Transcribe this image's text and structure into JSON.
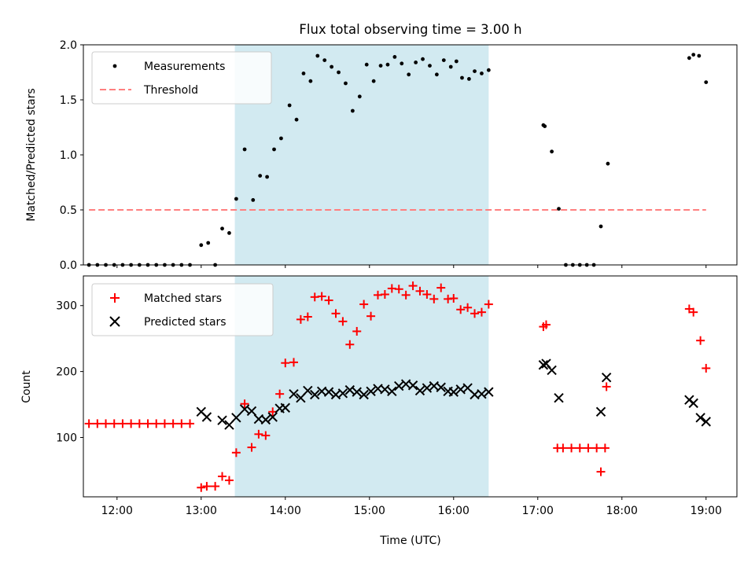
{
  "title": "Flux total observing time = 3.00 h",
  "xlabel": "Time (UTC)",
  "x_ticks": [
    "12:00",
    "13:00",
    "14:00",
    "15:00",
    "16:00",
    "17:00",
    "18:00",
    "19:00"
  ],
  "colors": {
    "measurements": "#000000",
    "threshold": "#ff7f7f",
    "matched": "#ff0000",
    "predicted": "#000000",
    "shading": "#add8e6"
  },
  "chart_data": [
    {
      "type": "scatter",
      "panel": "top",
      "ylabel": "Matched/Predicted stars",
      "xlim": [
        "11:36",
        "19:22"
      ],
      "ylim": [
        0,
        2.0
      ],
      "y_ticks": [
        "0.0",
        "0.5",
        "1.0",
        "1.5",
        "2.0"
      ],
      "legend_position": "upper-left",
      "shaded_interval": [
        "13:24",
        "16:25"
      ],
      "threshold": {
        "name": "Threshold",
        "value": 0.5,
        "x_range": [
          "11:40",
          "19:00"
        ]
      },
      "series": [
        {
          "name": "Measurements",
          "points": [
            [
              "11:40",
              0.0
            ],
            [
              "11:46",
              0.0
            ],
            [
              "11:52",
              0.0
            ],
            [
              "11:58",
              0.0
            ],
            [
              "12:04",
              0.0
            ],
            [
              "12:10",
              0.0
            ],
            [
              "12:16",
              0.0
            ],
            [
              "12:22",
              0.0
            ],
            [
              "12:28",
              0.0
            ],
            [
              "12:34",
              0.0
            ],
            [
              "12:40",
              0.0
            ],
            [
              "12:46",
              0.0
            ],
            [
              "12:52",
              0.0
            ],
            [
              "13:00",
              0.18
            ],
            [
              "13:05",
              0.2
            ],
            [
              "13:10",
              0.0
            ],
            [
              "13:15",
              0.33
            ],
            [
              "13:20",
              0.29
            ],
            [
              "13:25",
              0.6
            ],
            [
              "13:31",
              1.05
            ],
            [
              "13:37",
              0.59
            ],
            [
              "13:42",
              0.81
            ],
            [
              "13:47",
              0.8
            ],
            [
              "13:52",
              1.05
            ],
            [
              "13:57",
              1.15
            ],
            [
              "14:03",
              1.45
            ],
            [
              "14:08",
              1.32
            ],
            [
              "14:13",
              1.74
            ],
            [
              "14:18",
              1.67
            ],
            [
              "14:23",
              1.9
            ],
            [
              "14:28",
              1.86
            ],
            [
              "14:33",
              1.8
            ],
            [
              "14:38",
              1.75
            ],
            [
              "14:43",
              1.65
            ],
            [
              "14:48",
              1.4
            ],
            [
              "14:53",
              1.53
            ],
            [
              "14:58",
              1.82
            ],
            [
              "15:03",
              1.67
            ],
            [
              "15:08",
              1.81
            ],
            [
              "15:13",
              1.82
            ],
            [
              "15:18",
              1.89
            ],
            [
              "15:23",
              1.83
            ],
            [
              "15:28",
              1.73
            ],
            [
              "15:33",
              1.84
            ],
            [
              "15:38",
              1.87
            ],
            [
              "15:43",
              1.81
            ],
            [
              "15:48",
              1.73
            ],
            [
              "15:53",
              1.86
            ],
            [
              "15:58",
              1.8
            ],
            [
              "16:02",
              1.85
            ],
            [
              "16:06",
              1.7
            ],
            [
              "16:11",
              1.69
            ],
            [
              "16:15",
              1.76
            ],
            [
              "16:20",
              1.74
            ],
            [
              "16:25",
              1.77
            ],
            [
              "17:04",
              1.27
            ],
            [
              "17:05",
              1.26
            ],
            [
              "17:10",
              1.03
            ],
            [
              "17:15",
              0.51
            ],
            [
              "17:20",
              0.0
            ],
            [
              "17:25",
              0.0
            ],
            [
              "17:30",
              0.0
            ],
            [
              "17:35",
              0.0
            ],
            [
              "17:40",
              0.0
            ],
            [
              "17:45",
              0.35
            ],
            [
              "17:50",
              0.92
            ],
            [
              "18:48",
              1.88
            ],
            [
              "18:51",
              1.91
            ],
            [
              "18:55",
              1.9
            ],
            [
              "19:00",
              1.66
            ]
          ]
        }
      ]
    },
    {
      "type": "scatter",
      "panel": "bottom",
      "ylabel": "Count",
      "xlim": [
        "11:36",
        "19:22"
      ],
      "ylim": [
        10,
        345
      ],
      "y_ticks": [
        "100",
        "200",
        "300"
      ],
      "legend_position": "upper-left",
      "shaded_interval": [
        "13:24",
        "16:25"
      ],
      "series": [
        {
          "name": "Matched stars",
          "marker": "plus",
          "points": [
            [
              "11:40",
              121
            ],
            [
              "11:46",
              121
            ],
            [
              "11:52",
              121
            ],
            [
              "11:58",
              121
            ],
            [
              "12:04",
              121
            ],
            [
              "12:10",
              121
            ],
            [
              "12:16",
              121
            ],
            [
              "12:22",
              121
            ],
            [
              "12:28",
              121
            ],
            [
              "12:34",
              121
            ],
            [
              "12:40",
              121
            ],
            [
              "12:46",
              121
            ],
            [
              "12:52",
              121
            ],
            [
              "13:00",
              24
            ],
            [
              "13:04",
              26
            ],
            [
              "13:10",
              26
            ],
            [
              "13:15",
              41
            ],
            [
              "13:20",
              35
            ],
            [
              "13:25",
              77
            ],
            [
              "13:31",
              151
            ],
            [
              "13:36",
              85
            ],
            [
              "13:41",
              105
            ],
            [
              "13:46",
              103
            ],
            [
              "13:51",
              139
            ],
            [
              "13:56",
              166
            ],
            [
              "14:00",
              213
            ],
            [
              "14:06",
              214
            ],
            [
              "14:11",
              279
            ],
            [
              "14:16",
              283
            ],
            [
              "14:21",
              313
            ],
            [
              "14:26",
              314
            ],
            [
              "14:31",
              308
            ],
            [
              "14:36",
              288
            ],
            [
              "14:41",
              276
            ],
            [
              "14:46",
              241
            ],
            [
              "14:51",
              261
            ],
            [
              "14:56",
              302
            ],
            [
              "15:01",
              284
            ],
            [
              "15:06",
              316
            ],
            [
              "15:11",
              317
            ],
            [
              "15:16",
              326
            ],
            [
              "15:21",
              325
            ],
            [
              "15:26",
              316
            ],
            [
              "15:31",
              330
            ],
            [
              "15:36",
              322
            ],
            [
              "15:41",
              317
            ],
            [
              "15:46",
              310
            ],
            [
              "15:51",
              327
            ],
            [
              "15:56",
              310
            ],
            [
              "16:00",
              311
            ],
            [
              "16:05",
              294
            ],
            [
              "16:10",
              297
            ],
            [
              "16:15",
              288
            ],
            [
              "16:20",
              290
            ],
            [
              "16:25",
              302
            ],
            [
              "17:04",
              268
            ],
            [
              "17:06",
              271
            ],
            [
              "17:14",
              84
            ],
            [
              "17:18",
              84
            ],
            [
              "17:24",
              84
            ],
            [
              "17:30",
              84
            ],
            [
              "17:36",
              84
            ],
            [
              "17:42",
              84
            ],
            [
              "17:48",
              84
            ],
            [
              "17:45",
              48
            ],
            [
              "17:49",
              177
            ],
            [
              "18:48",
              295
            ],
            [
              "18:51",
              290
            ],
            [
              "18:56",
              247
            ],
            [
              "19:00",
              205
            ]
          ]
        },
        {
          "name": "Predicted stars",
          "marker": "x",
          "points": [
            [
              "13:00",
              139
            ],
            [
              "13:04",
              131
            ],
            [
              "13:15",
              126
            ],
            [
              "13:20",
              119
            ],
            [
              "13:25",
              130
            ],
            [
              "13:31",
              143
            ],
            [
              "13:36",
              140
            ],
            [
              "13:41",
              128
            ],
            [
              "13:46",
              127
            ],
            [
              "13:51",
              131
            ],
            [
              "13:56",
              144
            ],
            [
              "14:00",
              145
            ],
            [
              "14:06",
              166
            ],
            [
              "14:11",
              160
            ],
            [
              "14:16",
              171
            ],
            [
              "14:21",
              165
            ],
            [
              "14:26",
              170
            ],
            [
              "14:31",
              169
            ],
            [
              "14:36",
              165
            ],
            [
              "14:41",
              167
            ],
            [
              "14:46",
              172
            ],
            [
              "14:51",
              169
            ],
            [
              "14:56",
              165
            ],
            [
              "15:01",
              170
            ],
            [
              "15:06",
              174
            ],
            [
              "15:11",
              173
            ],
            [
              "15:16",
              170
            ],
            [
              "15:21",
              178
            ],
            [
              "15:26",
              181
            ],
            [
              "15:31",
              179
            ],
            [
              "15:36",
              171
            ],
            [
              "15:41",
              175
            ],
            [
              "15:46",
              178
            ],
            [
              "15:51",
              176
            ],
            [
              "15:56",
              170
            ],
            [
              "16:00",
              169
            ],
            [
              "16:05",
              173
            ],
            [
              "16:10",
              175
            ],
            [
              "16:15",
              165
            ],
            [
              "16:20",
              166
            ],
            [
              "16:25",
              169
            ],
            [
              "17:04",
              210
            ],
            [
              "17:06",
              212
            ],
            [
              "17:10",
              202
            ],
            [
              "17:15",
              160
            ],
            [
              "17:45",
              139
            ],
            [
              "17:49",
              191
            ],
            [
              "18:48",
              157
            ],
            [
              "18:51",
              152
            ],
            [
              "18:56",
              130
            ],
            [
              "19:00",
              124
            ]
          ]
        }
      ]
    }
  ]
}
